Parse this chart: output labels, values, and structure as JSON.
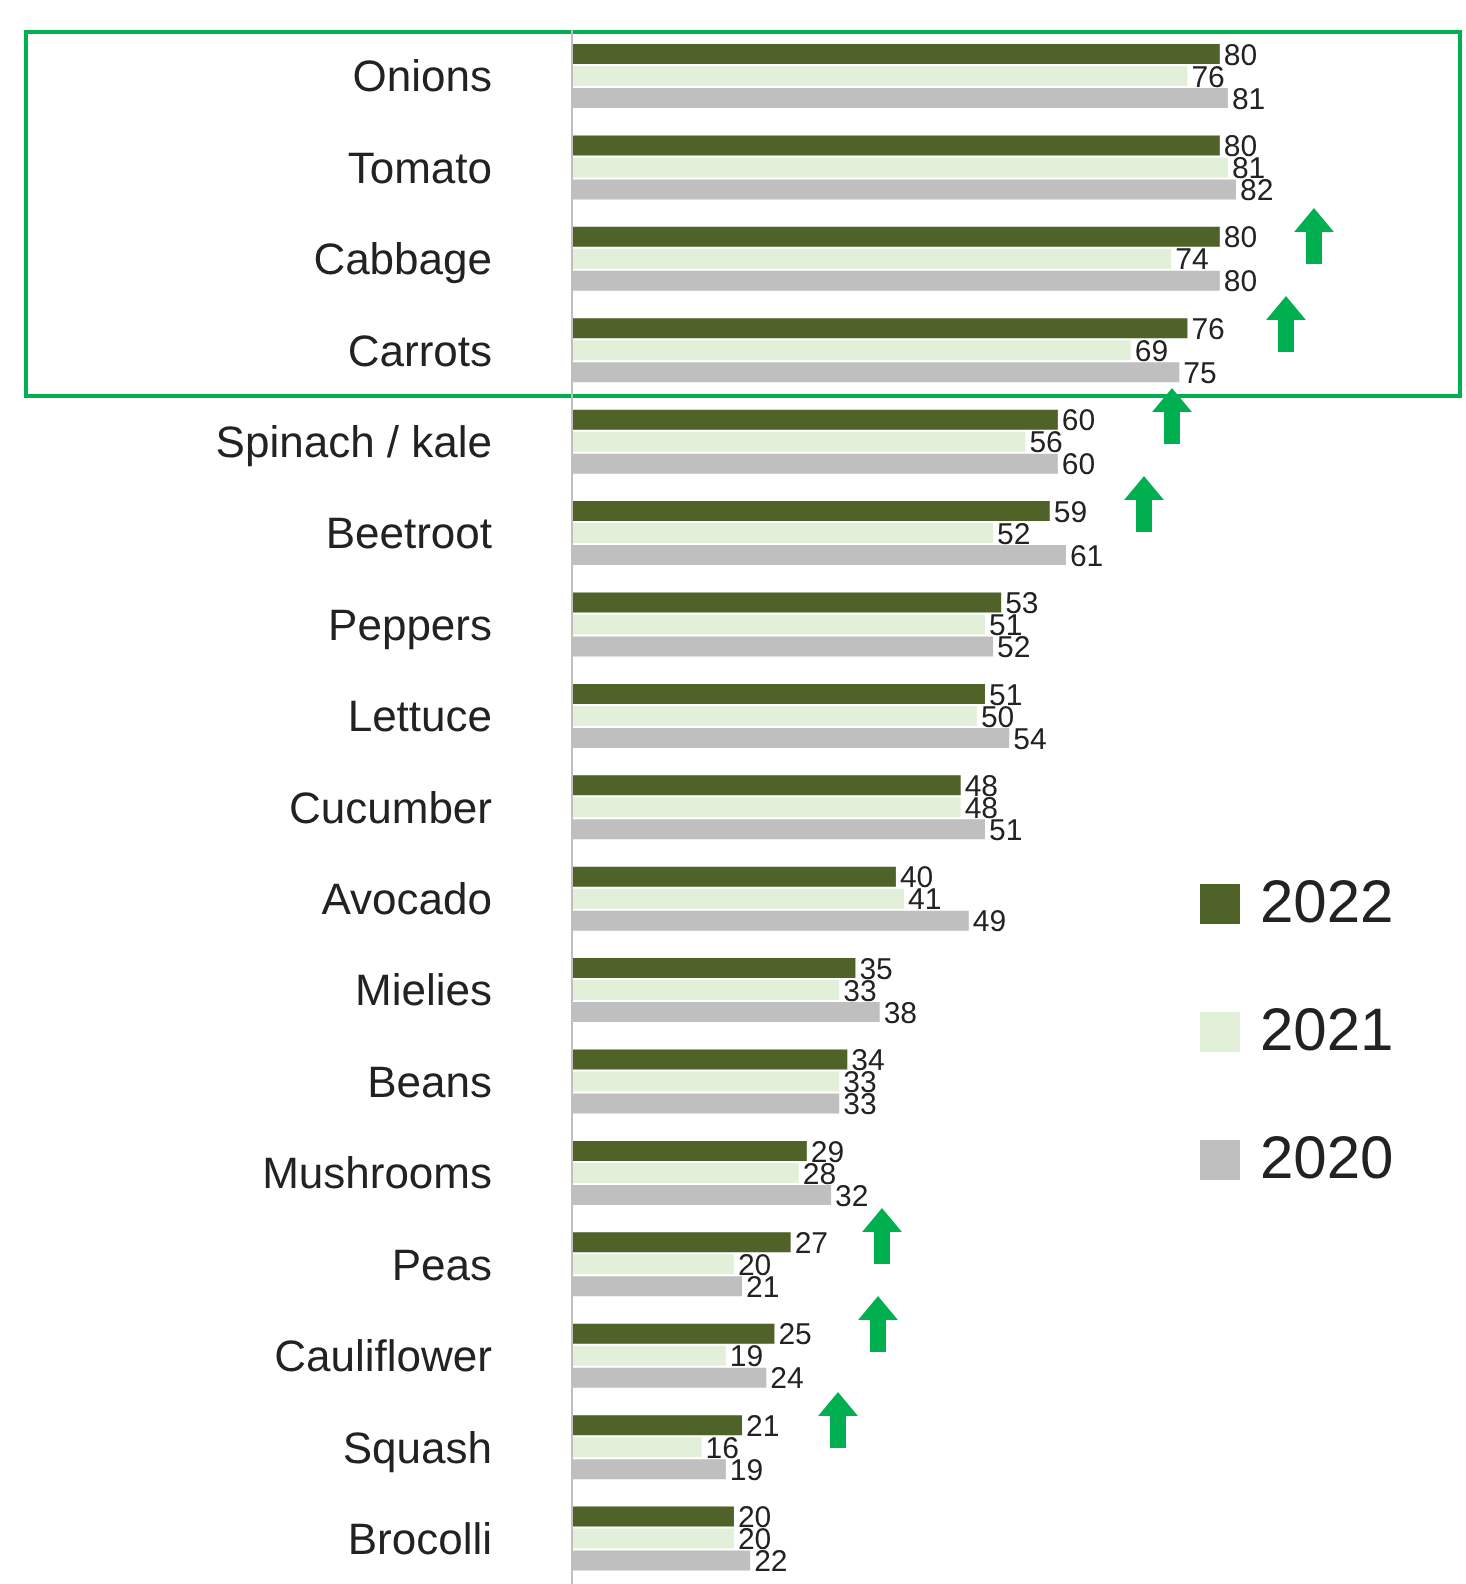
{
  "chart_data": {
    "type": "bar",
    "orientation": "horizontal",
    "tick_labels": "y",
    "data_labels": true,
    "legend": "right",
    "grid": false,
    "categories": [
      "Onions",
      "Tomato",
      "Cabbage",
      "Carrots",
      "Spinach / kale",
      "Beetroot",
      "Peppers",
      "Lettuce",
      "Cucumber",
      "Avocado",
      "Mielies",
      "Beans",
      "Mushrooms",
      "Peas",
      "Cauliflower",
      "Squash",
      "Brocolli"
    ],
    "series": [
      {
        "name": "2022",
        "color": "#4f6228",
        "values": [
          80,
          80,
          80,
          76,
          60,
          59,
          53,
          51,
          48,
          40,
          35,
          34,
          29,
          27,
          25,
          21,
          20
        ]
      },
      {
        "name": "2021",
        "color": "#e2efd9",
        "values": [
          76,
          81,
          74,
          69,
          56,
          52,
          51,
          50,
          48,
          41,
          33,
          33,
          28,
          20,
          19,
          16,
          20
        ]
      },
      {
        "name": "2020",
        "color": "#bfbfbf",
        "values": [
          81,
          82,
          80,
          75,
          60,
          61,
          52,
          54,
          51,
          49,
          38,
          33,
          32,
          21,
          24,
          19,
          22
        ]
      }
    ]
  }
}
